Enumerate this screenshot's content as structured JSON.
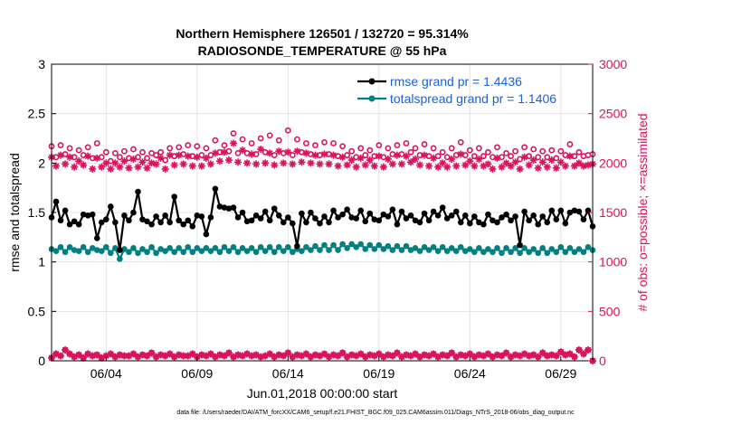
{
  "chart_data": {
    "type": "line",
    "title_line1": "Northern Hemisphere 126501 / 132720 = 95.314%",
    "title_line2": "RADIOSONDE_TEMPERATURE @ 55 hPa",
    "xlabel": "Jun.01,2018 00:00:00 start",
    "ylabel_left": "rmse and totalspread",
    "ylabel_right": "# of obs: o=possible; ×=assimilated",
    "footer": "data file: /Users/raeder/DAI/ATM_forcXX/CAM6_setup/f.e21.FHIST_BGC.f09_025.CAM6assim.011/Diags_NTrS_2018-06/obs_diag_output.nc",
    "x_start_day": 1.0,
    "x_step_day": 0.25,
    "xlim": [
      1.0,
      30.75
    ],
    "ylim_left": [
      0,
      3
    ],
    "ylim_right": [
      0,
      3000
    ],
    "yticks_left": [
      "0",
      "0.5",
      "1",
      "1.5",
      "2",
      "2.5",
      "3"
    ],
    "yticks_right": [
      "0",
      "500",
      "1000",
      "1500",
      "2000",
      "2500",
      "3000"
    ],
    "xticks": [
      {
        "day": 4,
        "label": "06/04"
      },
      {
        "day": 9,
        "label": "06/09"
      },
      {
        "day": 14,
        "label": "06/14"
      },
      {
        "day": 19,
        "label": "06/19"
      },
      {
        "day": 24,
        "label": "06/24"
      },
      {
        "day": 29,
        "label": "06/29"
      }
    ],
    "grid": true,
    "legend_position": "top-right",
    "legend": [
      {
        "label": "rmse grand pr = 1.4436",
        "color": "#000000"
      },
      {
        "label": "totalspread grand pr = 1.1406",
        "color": "#008080"
      }
    ],
    "colors": {
      "rmse": "#000000",
      "spread": "#008080",
      "obs": "#d9135d",
      "legend_text": "#1a5fe0"
    },
    "series": [
      {
        "key": "rmse",
        "values": [
          1.45,
          1.61,
          1.42,
          1.52,
          1.38,
          1.41,
          1.38,
          1.48,
          1.47,
          1.48,
          1.24,
          1.4,
          1.43,
          1.56,
          1.4,
          1.12,
          1.47,
          1.42,
          1.5,
          1.71,
          1.43,
          1.41,
          1.38,
          1.46,
          1.4,
          1.47,
          1.4,
          1.66,
          1.42,
          1.38,
          1.42,
          1.36,
          1.47,
          1.46,
          1.28,
          1.45,
          1.74,
          1.56,
          1.55,
          1.54,
          1.55,
          1.45,
          1.5,
          1.41,
          1.42,
          1.47,
          1.44,
          1.51,
          1.42,
          1.54,
          1.47,
          1.4,
          1.45,
          1.39,
          1.16,
          1.49,
          1.4,
          1.5,
          1.44,
          1.39,
          1.46,
          1.4,
          1.52,
          1.45,
          1.48,
          1.53,
          1.45,
          1.44,
          1.52,
          1.41,
          1.49,
          1.43,
          1.42,
          1.48,
          1.46,
          1.53,
          1.38,
          1.51,
          1.44,
          1.47,
          1.42,
          1.4,
          1.49,
          1.42,
          1.51,
          1.47,
          1.55,
          1.44,
          1.47,
          1.51,
          1.4,
          1.47,
          1.39,
          1.46,
          1.4,
          1.38,
          1.48,
          1.42,
          1.4,
          1.45,
          1.48,
          1.42,
          1.46,
          1.17,
          1.51,
          1.42,
          1.47,
          1.38,
          1.46,
          1.4,
          1.52,
          1.43,
          1.52,
          1.39,
          1.5,
          1.52,
          1.51,
          1.43,
          1.52,
          1.36
        ]
      },
      {
        "key": "spread",
        "values": [
          1.13,
          1.11,
          1.15,
          1.1,
          1.15,
          1.12,
          1.11,
          1.15,
          1.1,
          1.14,
          1.12,
          1.11,
          1.15,
          1.09,
          1.14,
          1.03,
          1.13,
          1.1,
          1.14,
          1.09,
          1.13,
          1.1,
          1.15,
          1.09,
          1.13,
          1.11,
          1.14,
          1.1,
          1.14,
          1.1,
          1.15,
          1.1,
          1.14,
          1.11,
          1.14,
          1.11,
          1.14,
          1.1,
          1.15,
          1.11,
          1.15,
          1.1,
          1.14,
          1.11,
          1.14,
          1.1,
          1.15,
          1.11,
          1.15,
          1.1,
          1.15,
          1.11,
          1.15,
          1.1,
          1.13,
          1.11,
          1.15,
          1.12,
          1.16,
          1.12,
          1.17,
          1.12,
          1.17,
          1.12,
          1.18,
          1.14,
          1.18,
          1.15,
          1.18,
          1.13,
          1.17,
          1.13,
          1.17,
          1.13,
          1.16,
          1.12,
          1.16,
          1.12,
          1.16,
          1.12,
          1.14,
          1.11,
          1.15,
          1.12,
          1.15,
          1.11,
          1.15,
          1.11,
          1.14,
          1.11,
          1.15,
          1.11,
          1.13,
          1.1,
          1.14,
          1.1,
          1.13,
          1.1,
          1.14,
          1.09,
          1.14,
          1.1,
          1.14,
          1.09,
          1.14,
          1.1,
          1.13,
          1.09,
          1.14,
          1.09,
          1.13,
          1.1,
          1.15,
          1.1,
          1.14,
          1.1,
          1.13,
          1.1,
          1.15,
          1.12
        ]
      },
      {
        "key": "possible",
        "values": [
          2170,
          2060,
          2180,
          2090,
          2150,
          2060,
          2130,
          2080,
          2160,
          2050,
          2200,
          2060,
          2110,
          2020,
          2100,
          2060,
          2120,
          2050,
          2140,
          2060,
          2110,
          2050,
          2100,
          2080,
          2110,
          2030,
          2150,
          2070,
          2160,
          2090,
          2180,
          2070,
          2170,
          2080,
          2150,
          2080,
          2230,
          2110,
          2180,
          2120,
          2300,
          2100,
          2240,
          2100,
          2200,
          2090,
          2250,
          2110,
          2280,
          2080,
          2230,
          2100,
          2330,
          2080,
          2240,
          2110,
          2200,
          2090,
          2180,
          2080,
          2210,
          2090,
          2200,
          2070,
          2170,
          2080,
          2120,
          2060,
          2150,
          2080,
          2130,
          2070,
          2180,
          2060,
          2150,
          2090,
          2180,
          2090,
          2200,
          2110,
          2150,
          2080,
          2190,
          2070,
          2150,
          2070,
          2110,
          2060,
          2150,
          2080,
          2210,
          2080,
          2130,
          2070,
          2150,
          2070,
          2110,
          2060,
          2160,
          2060,
          2100,
          2070,
          2120,
          2040,
          2160,
          2070,
          2140,
          2060,
          2120,
          2060,
          2130,
          2050,
          2120,
          2080,
          2190,
          2070,
          2110,
          2070,
          2080,
          2090
        ]
      },
      {
        "key": "assimilated",
        "values": [
          2060,
          1970,
          2080,
          1990,
          2060,
          1960,
          2020,
          1980,
          2070,
          1940,
          2050,
          1960,
          2000,
          1940,
          2000,
          1960,
          2020,
          1950,
          2040,
          1960,
          2010,
          1950,
          2000,
          1990,
          2050,
          1940,
          2080,
          1980,
          2080,
          1990,
          2070,
          1970,
          2060,
          1970,
          2050,
          1990,
          2100,
          2020,
          2110,
          2030,
          2200,
          2010,
          2130,
          2000,
          2090,
          1990,
          2140,
          2000,
          2100,
          1980,
          2120,
          2000,
          2110,
          1990,
          2120,
          2010,
          2100,
          2000,
          2080,
          1990,
          2090,
          1990,
          2080,
          1970,
          2060,
          1980,
          2030,
          1960,
          2050,
          1980,
          2030,
          1970,
          2070,
          1960,
          2040,
          1990,
          2080,
          1990,
          2070,
          2010,
          2040,
          1980,
          2080,
          1970,
          2050,
          1960,
          2000,
          1960,
          2040,
          1970,
          2090,
          1980,
          2020,
          1970,
          2040,
          1970,
          1990,
          1940,
          2050,
          1960,
          2000,
          1970,
          2010,
          1940,
          2060,
          1980,
          2030,
          1950,
          2010,
          1960,
          2030,
          1950,
          2010,
          1970,
          2070,
          1970,
          2000,
          1970,
          1980,
          1990
        ]
      },
      {
        "key": "possible_low",
        "values": [
          30,
          70,
          50,
          110,
          70,
          40,
          60,
          30,
          70,
          50,
          60,
          30,
          50,
          70,
          40,
          60,
          50,
          50,
          70,
          40,
          60,
          50,
          80,
          40,
          60,
          50,
          70,
          40,
          60,
          50,
          50,
          70,
          40,
          60,
          50,
          70,
          40,
          60,
          50,
          80,
          40,
          60,
          50,
          70,
          50,
          60,
          40,
          50,
          70,
          40,
          60,
          50,
          80,
          40,
          60,
          50,
          70,
          40,
          60,
          50,
          70,
          40,
          60,
          50,
          80,
          40,
          60,
          50,
          70,
          40,
          60,
          50,
          70,
          40,
          60,
          50,
          80,
          40,
          60,
          50,
          70,
          40,
          60,
          50,
          70,
          40,
          60,
          50,
          80,
          40,
          60,
          50,
          70,
          40,
          60,
          50,
          70,
          40,
          60,
          50,
          80,
          40,
          60,
          50,
          70,
          50,
          60,
          40,
          80,
          50,
          60,
          50,
          90,
          60,
          70,
          40,
          110,
          70,
          110,
          0
        ]
      },
      {
        "key": "assimilated_low",
        "values": [
          30,
          70,
          50,
          110,
          70,
          40,
          60,
          30,
          70,
          50,
          60,
          30,
          50,
          70,
          40,
          60,
          50,
          50,
          70,
          40,
          60,
          50,
          80,
          40,
          60,
          50,
          70,
          40,
          60,
          50,
          50,
          70,
          40,
          60,
          50,
          70,
          40,
          60,
          50,
          80,
          40,
          60,
          50,
          70,
          50,
          60,
          40,
          50,
          70,
          40,
          60,
          50,
          80,
          40,
          60,
          50,
          70,
          40,
          60,
          50,
          70,
          40,
          60,
          50,
          80,
          40,
          60,
          50,
          70,
          40,
          60,
          50,
          70,
          40,
          60,
          50,
          80,
          40,
          60,
          50,
          70,
          40,
          60,
          50,
          70,
          40,
          60,
          50,
          80,
          40,
          60,
          50,
          70,
          40,
          60,
          50,
          70,
          40,
          60,
          50,
          80,
          40,
          60,
          50,
          70,
          50,
          60,
          40,
          80,
          50,
          60,
          50,
          90,
          60,
          70,
          40,
          110,
          70,
          110,
          0
        ]
      }
    ]
  }
}
